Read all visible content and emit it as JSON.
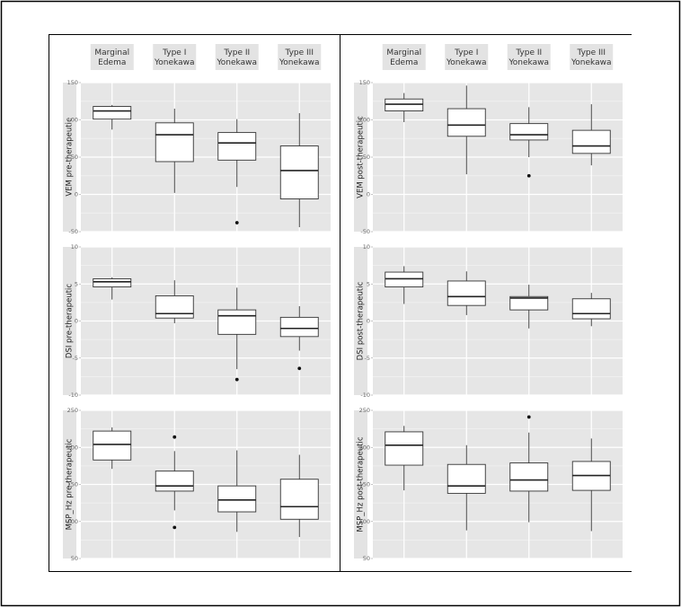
{
  "chart_data": {
    "type": "box",
    "columns": [
      {
        "condition": "pre-therapeutic",
        "groups": [
          [
            "Marginal",
            "Edema"
          ],
          [
            "Type I",
            "Yonekawa"
          ],
          [
            "Type II",
            "Yonekawa"
          ],
          [
            "Type III",
            "Yonekawa"
          ]
        ],
        "panels": [
          {
            "ylabel": "VEM   pre-therapeutic",
            "ylim": [
              -50,
              150
            ],
            "yticks": [
              "150",
              "100",
              "50",
              "0",
              "-50"
            ],
            "boxes": [
              {
                "min": 87,
                "q1": 101,
                "median": 112,
                "q3": 118,
                "max": 120,
                "outliers": []
              },
              {
                "min": 2,
                "q1": 44,
                "median": 80,
                "q3": 96,
                "max": 115,
                "outliers": []
              },
              {
                "min": 10,
                "q1": 46,
                "median": 69,
                "q3": 83,
                "max": 101,
                "outliers": [
                  -38
                ]
              },
              {
                "min": -44,
                "q1": -6,
                "median": 32,
                "q3": 65,
                "max": 109,
                "outliers": []
              }
            ]
          },
          {
            "ylabel": "DSI   pre-therapeutic",
            "ylim": [
              -10,
              10
            ],
            "yticks": [
              "10",
              "5",
              "0",
              "-5",
              "-10"
            ],
            "boxes": [
              {
                "min": 2.9,
                "q1": 4.6,
                "median": 5.3,
                "q3": 5.7,
                "max": 5.9,
                "outliers": []
              },
              {
                "min": -0.3,
                "q1": 0.4,
                "median": 1.0,
                "q3": 3.4,
                "max": 5.5,
                "outliers": []
              },
              {
                "min": -6.5,
                "q1": -1.8,
                "median": 0.7,
                "q3": 1.5,
                "max": 4.5,
                "outliers": [
                  -7.9
                ]
              },
              {
                "min": -4.0,
                "q1": -2.1,
                "median": -1.0,
                "q3": 0.5,
                "max": 2.0,
                "outliers": [
                  -6.4
                ]
              }
            ]
          },
          {
            "ylabel": "MSP_Hz   pre-therapeutic",
            "ylim": [
              50,
              250
            ],
            "yticks": [
              "250",
              "200",
              "150",
              "100",
              "50"
            ],
            "boxes": [
              {
                "min": 171,
                "q1": 183,
                "median": 204,
                "q3": 222,
                "max": 227,
                "outliers": []
              },
              {
                "min": 115,
                "q1": 141,
                "median": 148,
                "q3": 168,
                "max": 195,
                "outliers": [
                  214,
                  92
                ]
              },
              {
                "min": 86,
                "q1": 113,
                "median": 129,
                "q3": 148,
                "max": 196,
                "outliers": []
              },
              {
                "min": 79,
                "q1": 103,
                "median": 120,
                "q3": 157,
                "max": 190,
                "outliers": []
              }
            ]
          }
        ]
      },
      {
        "condition": "post-therapeutic",
        "groups": [
          [
            "Marginal",
            "Edema"
          ],
          [
            "Type I",
            "Yonekawa"
          ],
          [
            "Type II",
            "Yonekawa"
          ],
          [
            "Type III",
            "Yonekawa"
          ]
        ],
        "panels": [
          {
            "ylabel": "VEM   post-therapeutic",
            "ylim": [
              -50,
              150
            ],
            "yticks": [
              "150",
              "100",
              "50",
              "0",
              "-50"
            ],
            "boxes": [
              {
                "min": 97,
                "q1": 112,
                "median": 121,
                "q3": 128,
                "max": 136,
                "outliers": []
              },
              {
                "min": 27,
                "q1": 78,
                "median": 93,
                "q3": 115,
                "max": 146,
                "outliers": []
              },
              {
                "min": 50,
                "q1": 73,
                "median": 80,
                "q3": 95,
                "max": 117,
                "outliers": [
                  25
                ]
              },
              {
                "min": 39,
                "q1": 55,
                "median": 65,
                "q3": 86,
                "max": 121,
                "outliers": []
              }
            ]
          },
          {
            "ylabel": "DSI   post-therapeutic",
            "ylim": [
              -10,
              10
            ],
            "yticks": [
              "10",
              "5",
              "0",
              "-5",
              "-10"
            ],
            "boxes": [
              {
                "min": 2.3,
                "q1": 4.6,
                "median": 5.7,
                "q3": 6.6,
                "max": 7.4,
                "outliers": []
              },
              {
                "min": 0.8,
                "q1": 2.1,
                "median": 3.3,
                "q3": 5.4,
                "max": 6.7,
                "outliers": []
              },
              {
                "min": -1.0,
                "q1": 1.5,
                "median": 3.1,
                "q3": 3.3,
                "max": 4.9,
                "outliers": []
              },
              {
                "min": -0.7,
                "q1": 0.3,
                "median": 1.0,
                "q3": 3.0,
                "max": 3.8,
                "outliers": []
              }
            ]
          },
          {
            "ylabel": "MSP_Hz   post-therapeutic",
            "ylim": [
              50,
              250
            ],
            "yticks": [
              "250",
              "200",
              "150",
              "100",
              "50"
            ],
            "boxes": [
              {
                "min": 142,
                "q1": 176,
                "median": 203,
                "q3": 221,
                "max": 229,
                "outliers": []
              },
              {
                "min": 88,
                "q1": 138,
                "median": 148,
                "q3": 177,
                "max": 203,
                "outliers": []
              },
              {
                "min": 99,
                "q1": 141,
                "median": 156,
                "q3": 179,
                "max": 220,
                "outliers": [
                  241
                ]
              },
              {
                "min": 87,
                "q1": 142,
                "median": 162,
                "q3": 181,
                "max": 212,
                "outliers": []
              }
            ]
          }
        ]
      }
    ]
  }
}
